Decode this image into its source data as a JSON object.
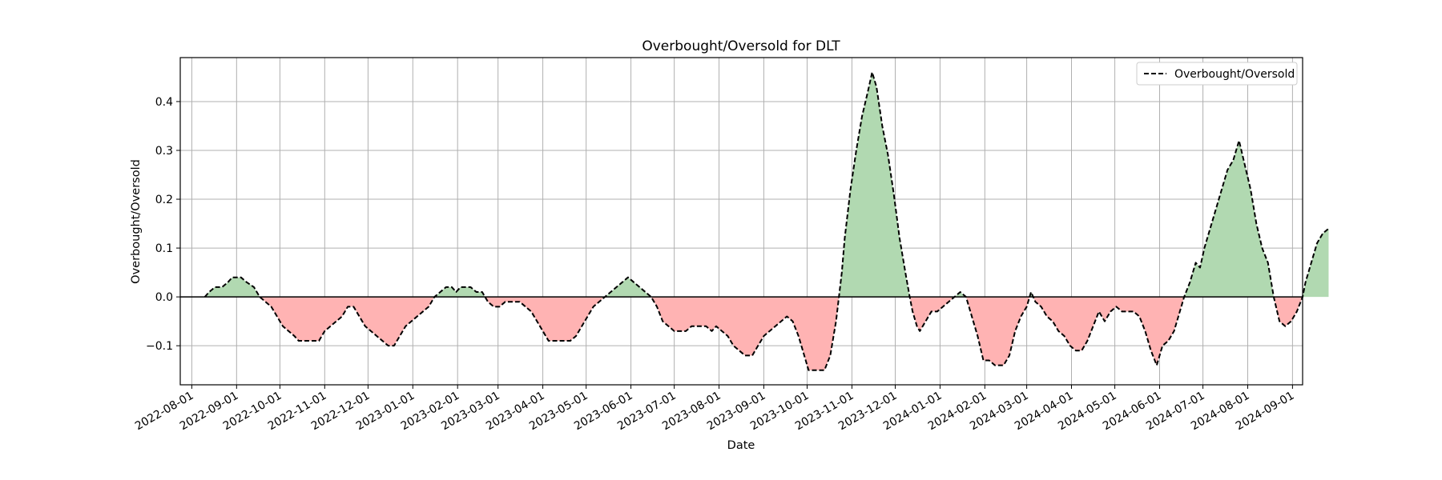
{
  "chart_data": {
    "type": "area",
    "title": "Overbought/Oversold for DLT",
    "xlabel": "Date",
    "ylabel": "Overbought/Oversold",
    "xlim": [
      "2022-07-24",
      "2024-09-08"
    ],
    "ylim": [
      -0.18,
      0.49
    ],
    "x_ticks": [
      "2022-08-01",
      "2022-09-01",
      "2022-10-01",
      "2022-11-01",
      "2022-12-01",
      "2023-01-01",
      "2023-02-01",
      "2023-03-01",
      "2023-04-01",
      "2023-05-01",
      "2023-06-01",
      "2023-07-01",
      "2023-08-01",
      "2023-09-01",
      "2023-10-01",
      "2023-11-01",
      "2023-12-01",
      "2024-01-01",
      "2024-02-01",
      "2024-03-01",
      "2024-04-01",
      "2024-05-01",
      "2024-06-01",
      "2024-07-01",
      "2024-08-01",
      "2024-09-01"
    ],
    "y_ticks": [
      -0.1,
      0.0,
      0.1,
      0.2,
      0.3,
      0.4
    ],
    "y_tick_labels": [
      "−0.1",
      "0.0",
      "0.1",
      "0.2",
      "0.3",
      "0.4"
    ],
    "grid": true,
    "legend": {
      "position": "top-right",
      "entries": [
        "Overbought/Oversold"
      ]
    },
    "zero_line": 0,
    "fill_colors": {
      "positive": "#b1d9b1",
      "negative": "#ffb3b3"
    },
    "line_color": "#000000",
    "series": [
      {
        "name": "Overbought/Oversold",
        "style": "dashed",
        "points": [
          [
            "2022-08-10",
            0.0
          ],
          [
            "2022-08-13",
            0.01
          ],
          [
            "2022-08-17",
            0.02
          ],
          [
            "2022-08-22",
            0.02
          ],
          [
            "2022-08-26",
            0.03
          ],
          [
            "2022-08-29",
            0.04
          ],
          [
            "2022-09-04",
            0.04
          ],
          [
            "2022-09-08",
            0.03
          ],
          [
            "2022-09-13",
            0.02
          ],
          [
            "2022-09-17",
            0.0
          ],
          [
            "2022-09-21",
            -0.01
          ],
          [
            "2022-09-25",
            -0.02
          ],
          [
            "2022-09-29",
            -0.04
          ],
          [
            "2022-10-03",
            -0.06
          ],
          [
            "2022-10-07",
            -0.07
          ],
          [
            "2022-10-11",
            -0.08
          ],
          [
            "2022-10-14",
            -0.09
          ],
          [
            "2022-10-18",
            -0.09
          ],
          [
            "2022-10-28",
            -0.09
          ],
          [
            "2022-11-01",
            -0.07
          ],
          [
            "2022-11-05",
            -0.06
          ],
          [
            "2022-11-09",
            -0.05
          ],
          [
            "2022-11-13",
            -0.04
          ],
          [
            "2022-11-17",
            -0.02
          ],
          [
            "2022-11-21",
            -0.02
          ],
          [
            "2022-11-25",
            -0.04
          ],
          [
            "2022-11-29",
            -0.06
          ],
          [
            "2022-12-03",
            -0.07
          ],
          [
            "2022-12-07",
            -0.08
          ],
          [
            "2022-12-11",
            -0.09
          ],
          [
            "2022-12-15",
            -0.1
          ],
          [
            "2022-12-19",
            -0.1
          ],
          [
            "2022-12-23",
            -0.08
          ],
          [
            "2022-12-27",
            -0.06
          ],
          [
            "2022-12-31",
            -0.05
          ],
          [
            "2023-01-04",
            -0.04
          ],
          [
            "2023-01-08",
            -0.03
          ],
          [
            "2023-01-12",
            -0.02
          ],
          [
            "2023-01-16",
            0.0
          ],
          [
            "2023-01-20",
            0.01
          ],
          [
            "2023-01-24",
            0.02
          ],
          [
            "2023-01-28",
            0.02
          ],
          [
            "2023-01-31",
            0.01
          ],
          [
            "2023-02-03",
            0.02
          ],
          [
            "2023-02-10",
            0.02
          ],
          [
            "2023-02-14",
            0.01
          ],
          [
            "2023-02-18",
            0.01
          ],
          [
            "2023-02-22",
            -0.01
          ],
          [
            "2023-02-26",
            -0.02
          ],
          [
            "2023-03-02",
            -0.02
          ],
          [
            "2023-03-06",
            -0.01
          ],
          [
            "2023-03-16",
            -0.01
          ],
          [
            "2023-03-20",
            -0.02
          ],
          [
            "2023-03-24",
            -0.03
          ],
          [
            "2023-03-28",
            -0.05
          ],
          [
            "2023-04-01",
            -0.07
          ],
          [
            "2023-04-05",
            -0.09
          ],
          [
            "2023-04-20",
            -0.09
          ],
          [
            "2023-04-24",
            -0.08
          ],
          [
            "2023-04-28",
            -0.06
          ],
          [
            "2023-05-02",
            -0.04
          ],
          [
            "2023-05-06",
            -0.02
          ],
          [
            "2023-05-10",
            -0.01
          ],
          [
            "2023-05-14",
            0.0
          ],
          [
            "2023-05-18",
            0.01
          ],
          [
            "2023-05-22",
            0.02
          ],
          [
            "2023-05-26",
            0.03
          ],
          [
            "2023-05-30",
            0.04
          ],
          [
            "2023-06-03",
            0.03
          ],
          [
            "2023-06-07",
            0.02
          ],
          [
            "2023-06-11",
            0.01
          ],
          [
            "2023-06-15",
            0.0
          ],
          [
            "2023-06-19",
            -0.02
          ],
          [
            "2023-06-23",
            -0.05
          ],
          [
            "2023-06-27",
            -0.06
          ],
          [
            "2023-07-01",
            -0.07
          ],
          [
            "2023-07-09",
            -0.07
          ],
          [
            "2023-07-13",
            -0.06
          ],
          [
            "2023-07-23",
            -0.06
          ],
          [
            "2023-07-27",
            -0.07
          ],
          [
            "2023-07-30",
            -0.06
          ],
          [
            "2023-08-03",
            -0.07
          ],
          [
            "2023-08-07",
            -0.08
          ],
          [
            "2023-08-11",
            -0.1
          ],
          [
            "2023-08-15",
            -0.11
          ],
          [
            "2023-08-19",
            -0.12
          ],
          [
            "2023-08-24",
            -0.12
          ],
          [
            "2023-08-28",
            -0.1
          ],
          [
            "2023-09-01",
            -0.08
          ],
          [
            "2023-09-05",
            -0.07
          ],
          [
            "2023-09-09",
            -0.06
          ],
          [
            "2023-09-13",
            -0.05
          ],
          [
            "2023-09-17",
            -0.04
          ],
          [
            "2023-09-21",
            -0.05
          ],
          [
            "2023-09-25",
            -0.08
          ],
          [
            "2023-09-29",
            -0.12
          ],
          [
            "2023-10-02",
            -0.15
          ],
          [
            "2023-10-13",
            -0.15
          ],
          [
            "2023-10-17",
            -0.12
          ],
          [
            "2023-10-21",
            -0.05
          ],
          [
            "2023-10-23",
            0.0
          ],
          [
            "2023-10-25",
            0.05
          ],
          [
            "2023-10-27",
            0.12
          ],
          [
            "2023-10-31",
            0.22
          ],
          [
            "2023-11-04",
            0.3
          ],
          [
            "2023-11-08",
            0.37
          ],
          [
            "2023-11-12",
            0.42
          ],
          [
            "2023-11-15",
            0.46
          ],
          [
            "2023-11-18",
            0.43
          ],
          [
            "2023-11-22",
            0.35
          ],
          [
            "2023-11-26",
            0.29
          ],
          [
            "2023-11-30",
            0.21
          ],
          [
            "2023-12-04",
            0.12
          ],
          [
            "2023-12-08",
            0.05
          ],
          [
            "2023-12-11",
            0.0
          ],
          [
            "2023-12-13",
            -0.03
          ],
          [
            "2023-12-16",
            -0.06
          ],
          [
            "2023-12-18",
            -0.07
          ],
          [
            "2023-12-22",
            -0.05
          ],
          [
            "2023-12-26",
            -0.03
          ],
          [
            "2023-12-30",
            -0.03
          ],
          [
            "2024-01-03",
            -0.02
          ],
          [
            "2024-01-07",
            -0.01
          ],
          [
            "2024-01-11",
            0.0
          ],
          [
            "2024-01-15",
            0.01
          ],
          [
            "2024-01-19",
            0.0
          ],
          [
            "2024-01-23",
            -0.04
          ],
          [
            "2024-01-27",
            -0.08
          ],
          [
            "2024-01-31",
            -0.13
          ],
          [
            "2024-02-04",
            -0.13
          ],
          [
            "2024-02-08",
            -0.14
          ],
          [
            "2024-02-14",
            -0.14
          ],
          [
            "2024-02-18",
            -0.12
          ],
          [
            "2024-02-22",
            -0.07
          ],
          [
            "2024-02-26",
            -0.04
          ],
          [
            "2024-03-01",
            -0.02
          ],
          [
            "2024-03-04",
            0.01
          ],
          [
            "2024-03-07",
            -0.01
          ],
          [
            "2024-03-11",
            -0.02
          ],
          [
            "2024-03-15",
            -0.04
          ],
          [
            "2024-03-19",
            -0.05
          ],
          [
            "2024-03-23",
            -0.07
          ],
          [
            "2024-03-27",
            -0.08
          ],
          [
            "2024-03-31",
            -0.1
          ],
          [
            "2024-04-04",
            -0.11
          ],
          [
            "2024-04-08",
            -0.11
          ],
          [
            "2024-04-12",
            -0.09
          ],
          [
            "2024-04-16",
            -0.06
          ],
          [
            "2024-04-20",
            -0.03
          ],
          [
            "2024-04-24",
            -0.05
          ],
          [
            "2024-04-28",
            -0.03
          ],
          [
            "2024-05-02",
            -0.02
          ],
          [
            "2024-05-06",
            -0.03
          ],
          [
            "2024-05-10",
            -0.03
          ],
          [
            "2024-05-14",
            -0.03
          ],
          [
            "2024-05-18",
            -0.04
          ],
          [
            "2024-05-22",
            -0.07
          ],
          [
            "2024-05-26",
            -0.11
          ],
          [
            "2024-05-30",
            -0.14
          ],
          [
            "2024-06-03",
            -0.1
          ],
          [
            "2024-06-07",
            -0.09
          ],
          [
            "2024-06-11",
            -0.07
          ],
          [
            "2024-06-15",
            -0.03
          ],
          [
            "2024-06-18",
            0.0
          ],
          [
            "2024-06-22",
            0.03
          ],
          [
            "2024-06-26",
            0.07
          ],
          [
            "2024-06-29",
            0.06
          ],
          [
            "2024-07-02",
            0.1
          ],
          [
            "2024-07-06",
            0.14
          ],
          [
            "2024-07-10",
            0.18
          ],
          [
            "2024-07-14",
            0.22
          ],
          [
            "2024-07-18",
            0.26
          ],
          [
            "2024-07-22",
            0.28
          ],
          [
            "2024-07-26",
            0.32
          ],
          [
            "2024-07-30",
            0.27
          ],
          [
            "2024-08-03",
            0.22
          ],
          [
            "2024-08-07",
            0.15
          ],
          [
            "2024-08-11",
            0.1
          ],
          [
            "2024-08-15",
            0.07
          ],
          [
            "2024-08-19",
            0.0
          ],
          [
            "2024-08-23",
            -0.05
          ],
          [
            "2024-08-27",
            -0.06
          ],
          [
            "2024-08-31",
            -0.05
          ],
          [
            "2024-09-04",
            -0.03
          ],
          [
            "2024-09-08",
            0.0
          ],
          [
            "2024-09-10",
            0.03
          ],
          [
            "2024-09-14",
            0.07
          ],
          [
            "2024-09-18",
            0.11
          ],
          [
            "2024-09-22",
            0.13
          ],
          [
            "2024-09-26",
            0.14
          ]
        ]
      }
    ]
  }
}
